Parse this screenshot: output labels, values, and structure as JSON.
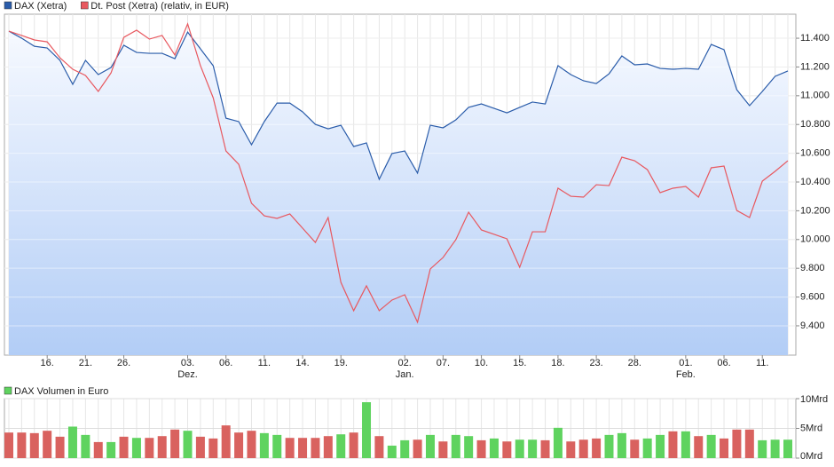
{
  "chart_data": [
    {
      "type": "line",
      "categories": [
        null,
        null,
        null,
        "16.",
        null,
        null,
        "21.",
        null,
        null,
        "26.",
        null,
        null,
        null,
        null,
        "03.",
        null,
        null,
        "06.",
        null,
        null,
        "11.",
        null,
        null,
        "14.",
        null,
        null,
        "19.",
        null,
        null,
        null,
        null,
        "02.",
        null,
        null,
        "07.",
        null,
        null,
        "10.",
        null,
        null,
        "15.",
        null,
        null,
        "18.",
        null,
        null,
        "23.",
        null,
        null,
        "28.",
        null,
        null,
        null,
        "01.",
        null,
        null,
        "06.",
        null,
        null,
        "11.",
        null,
        null
      ],
      "category_groups": [
        null,
        null,
        null,
        null,
        null,
        null,
        null,
        null,
        null,
        null,
        null,
        null,
        null,
        null,
        "Dez.",
        null,
        null,
        null,
        null,
        null,
        null,
        null,
        null,
        null,
        null,
        null,
        null,
        null,
        null,
        null,
        null,
        "Jan.",
        null,
        null,
        null,
        null,
        null,
        null,
        null,
        null,
        null,
        null,
        null,
        null,
        null,
        null,
        null,
        null,
        null,
        null,
        null,
        null,
        null,
        "Feb.",
        null,
        null,
        null,
        null,
        null,
        null,
        null,
        null
      ],
      "series": [
        {
          "name": "DAX (Xetra)",
          "color": "#2a5caa",
          "fill": true,
          "values": [
            11449,
            11400,
            11344,
            11332,
            11246,
            11079,
            11246,
            11147,
            11196,
            11351,
            11301,
            11295,
            11295,
            11258,
            11443,
            11326,
            11209,
            10844,
            10820,
            10659,
            10820,
            10949,
            10949,
            10888,
            10801,
            10770,
            10795,
            10647,
            10672,
            10419,
            10598,
            10616,
            10462,
            10795,
            10777,
            10832,
            10919,
            10943,
            10912,
            10881,
            10919,
            10956,
            10943,
            11209,
            11147,
            11104,
            11085,
            11153,
            11277,
            11215,
            11221,
            11190,
            11184,
            11190,
            11184,
            11357,
            11320,
            11042,
            10931,
            11030,
            11135,
            11172
          ]
        },
        {
          "name": "Dt. Post (Xetra) (relativ, in EUR)",
          "color": "#e8585f",
          "fill": false,
          "values": [
            11449,
            11419,
            11388,
            11375,
            11264,
            11184,
            11141,
            11030,
            11159,
            11406,
            11456,
            11394,
            11419,
            11283,
            11500,
            11209,
            10986,
            10616,
            10523,
            10252,
            10165,
            10147,
            10178,
            10079,
            9980,
            10153,
            9702,
            9505,
            9678,
            9505,
            9579,
            9616,
            9425,
            9795,
            9875,
            9999,
            10190,
            10067,
            10036,
            10005,
            9807,
            10054,
            10054,
            10357,
            10301,
            10295,
            10381,
            10375,
            10573,
            10548,
            10486,
            10326,
            10357,
            10369,
            10295,
            10499,
            10511,
            10202,
            10153,
            10406,
            10474,
            10548
          ]
        }
      ],
      "ylim": [
        9196,
        11567
      ],
      "yticks": [
        {
          "value": 9400,
          "label": "9.400"
        },
        {
          "value": 9600,
          "label": "9.600"
        },
        {
          "value": 9800,
          "label": "9.800"
        },
        {
          "value": 10000,
          "label": "10.000"
        },
        {
          "value": 10200,
          "label": "10.200"
        },
        {
          "value": 10400,
          "label": "10.400"
        },
        {
          "value": 10600,
          "label": "10.600"
        },
        {
          "value": 10800,
          "label": "10.800"
        },
        {
          "value": 11000,
          "label": "11.000"
        },
        {
          "value": 11200,
          "label": "11.200"
        },
        {
          "value": 11400,
          "label": "11.400"
        }
      ],
      "grid": true
    },
    {
      "type": "bar",
      "series": [
        {
          "name": "DAX Volumen in Euro",
          "color": "#5fd35f",
          "colors": [
            "#d9625f",
            "#d9625f",
            "#d9625f",
            "#d9625f",
            "#d9625f",
            "#5fd35f",
            "#5fd35f",
            "#d9625f",
            "#5fd35f",
            "#d9625f",
            "#5fd35f",
            "#d9625f",
            "#d9625f",
            "#d9625f",
            "#5fd35f",
            "#d9625f",
            "#d9625f",
            "#d9625f",
            "#d9625f",
            "#d9625f",
            "#5fd35f",
            "#5fd35f",
            "#d9625f",
            "#d9625f",
            "#d9625f",
            "#d9625f",
            "#5fd35f",
            "#d9625f",
            "#5fd35f",
            "#d9625f",
            "#5fd35f",
            "#5fd35f",
            "#d9625f",
            "#5fd35f",
            "#d9625f",
            "#5fd35f",
            "#5fd35f",
            "#d9625f",
            "#5fd35f",
            "#d9625f",
            "#5fd35f",
            "#5fd35f",
            "#d9625f",
            "#5fd35f",
            "#d9625f",
            "#d9625f",
            "#d9625f",
            "#5fd35f",
            "#5fd35f",
            "#d9625f",
            "#5fd35f",
            "#5fd35f",
            "#d9625f",
            "#5fd35f",
            "#d9625f",
            "#5fd35f",
            "#d9625f",
            "#d9625f",
            "#d9625f",
            "#5fd35f",
            "#5fd35f",
            "#5fd35f"
          ],
          "values": [
            4.3,
            4.3,
            4.2,
            4.6,
            3.6,
            5.3,
            3.9,
            2.7,
            2.7,
            3.6,
            3.4,
            3.4,
            3.7,
            4.8,
            4.6,
            3.6,
            3.3,
            5.5,
            4.3,
            4.6,
            4.2,
            3.9,
            3.4,
            3.4,
            3.4,
            3.7,
            4.0,
            4.3,
            9.4,
            3.7,
            2.1,
            3.0,
            3.1,
            3.9,
            2.8,
            3.9,
            3.7,
            3.0,
            3.3,
            2.8,
            3.1,
            3.1,
            3.0,
            5.1,
            2.8,
            3.1,
            3.3,
            3.9,
            4.2,
            3.1,
            3.3,
            3.9,
            4.5,
            4.5,
            3.7,
            3.9,
            3.3,
            4.8,
            4.8,
            3.0,
            3.1,
            3.1
          ]
        }
      ],
      "ylim": [
        0,
        10
      ],
      "yticks": [
        {
          "value": 0,
          "label": "0Mrd"
        },
        {
          "value": 5,
          "label": "5Mrd"
        },
        {
          "value": 10,
          "label": "10Mrd"
        }
      ],
      "grid": true
    }
  ]
}
